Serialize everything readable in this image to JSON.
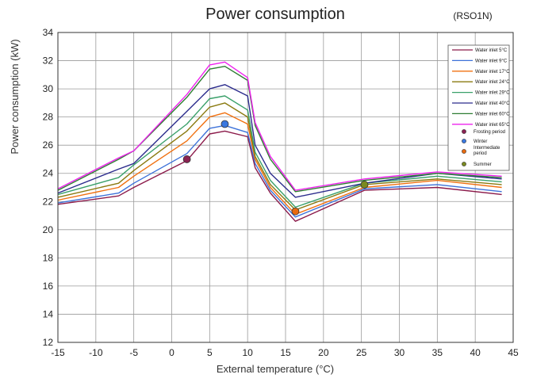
{
  "chart_data": {
    "type": "line",
    "title": "Power consumption",
    "subtitle": "(RSO1N)",
    "xlabel": "External temperature (°C)",
    "ylabel": "Power consumption (kW)",
    "xlim": [
      -15,
      45
    ],
    "ylim": [
      12,
      34
    ],
    "xticks": [
      -15,
      -10,
      -5,
      0,
      5,
      10,
      15,
      20,
      25,
      30,
      35,
      40,
      45
    ],
    "yticks": [
      12,
      14,
      16,
      18,
      20,
      22,
      24,
      26,
      28,
      30,
      32,
      34
    ],
    "grid": true,
    "legend_position": "top-right",
    "x": [
      -15,
      -7,
      -5,
      2,
      5,
      7,
      10,
      11,
      13,
      16.3,
      25.4,
      35,
      43.5
    ],
    "series": [
      {
        "name": "Water inlet 5°C",
        "color": "#8b1a4a",
        "values": [
          21.8,
          22.4,
          23.0,
          24.9,
          26.8,
          27.0,
          26.6,
          24.4,
          22.6,
          20.6,
          22.8,
          23.0,
          22.5
        ]
      },
      {
        "name": "Water inlet 9°C",
        "color": "#3d72d9",
        "values": [
          21.9,
          22.6,
          23.3,
          25.4,
          27.2,
          27.4,
          26.9,
          24.7,
          22.8,
          20.9,
          22.9,
          23.2,
          22.7
        ]
      },
      {
        "name": "Water inlet 17°C",
        "color": "#f07010",
        "values": [
          22.1,
          23.0,
          23.8,
          26.3,
          28.0,
          28.3,
          27.5,
          25.0,
          23.0,
          21.1,
          23.0,
          23.5,
          23.0
        ]
      },
      {
        "name": "Water inlet 24°C",
        "color": "#8a7a10",
        "values": [
          22.3,
          23.3,
          24.2,
          27.0,
          28.7,
          29.0,
          28.0,
          25.2,
          23.2,
          21.4,
          23.2,
          23.6,
          23.2
        ]
      },
      {
        "name": "Water inlet 29°C",
        "color": "#3aa06a",
        "values": [
          22.5,
          23.7,
          24.6,
          27.5,
          29.3,
          29.5,
          28.5,
          25.5,
          23.5,
          21.6,
          23.3,
          23.8,
          23.4
        ]
      },
      {
        "name": "Water inlet 40°C",
        "color": "#2b2b8c",
        "values": [
          22.6,
          24.3,
          24.7,
          28.4,
          30.0,
          30.3,
          29.5,
          26.0,
          24.0,
          22.3,
          23.3,
          24.0,
          23.6
        ]
      },
      {
        "name": "Water inlet 60°C",
        "color": "#2e7d32",
        "values": [
          22.8,
          25.0,
          25.6,
          29.4,
          31.4,
          31.6,
          30.6,
          27.4,
          25.0,
          22.7,
          23.5,
          24.0,
          23.7
        ]
      },
      {
        "name": "Water inlet 65°C",
        "color": "#ee22ee",
        "values": [
          22.9,
          25.1,
          25.6,
          29.6,
          31.7,
          31.9,
          30.8,
          27.6,
          25.2,
          22.8,
          23.6,
          24.1,
          23.8
        ]
      }
    ],
    "markers": [
      {
        "name": "Frosting period",
        "color": "#8b2252",
        "x": 2,
        "y": 25.0
      },
      {
        "name": "Winter",
        "color": "#3a78e0",
        "x": 7,
        "y": 27.5
      },
      {
        "name": "Intermediate period",
        "color": "#e86a10",
        "x": 16.3,
        "y": 21.3
      },
      {
        "name": "Summer",
        "color": "#7a8a20",
        "x": 25.4,
        "y": 23.2
      }
    ]
  }
}
